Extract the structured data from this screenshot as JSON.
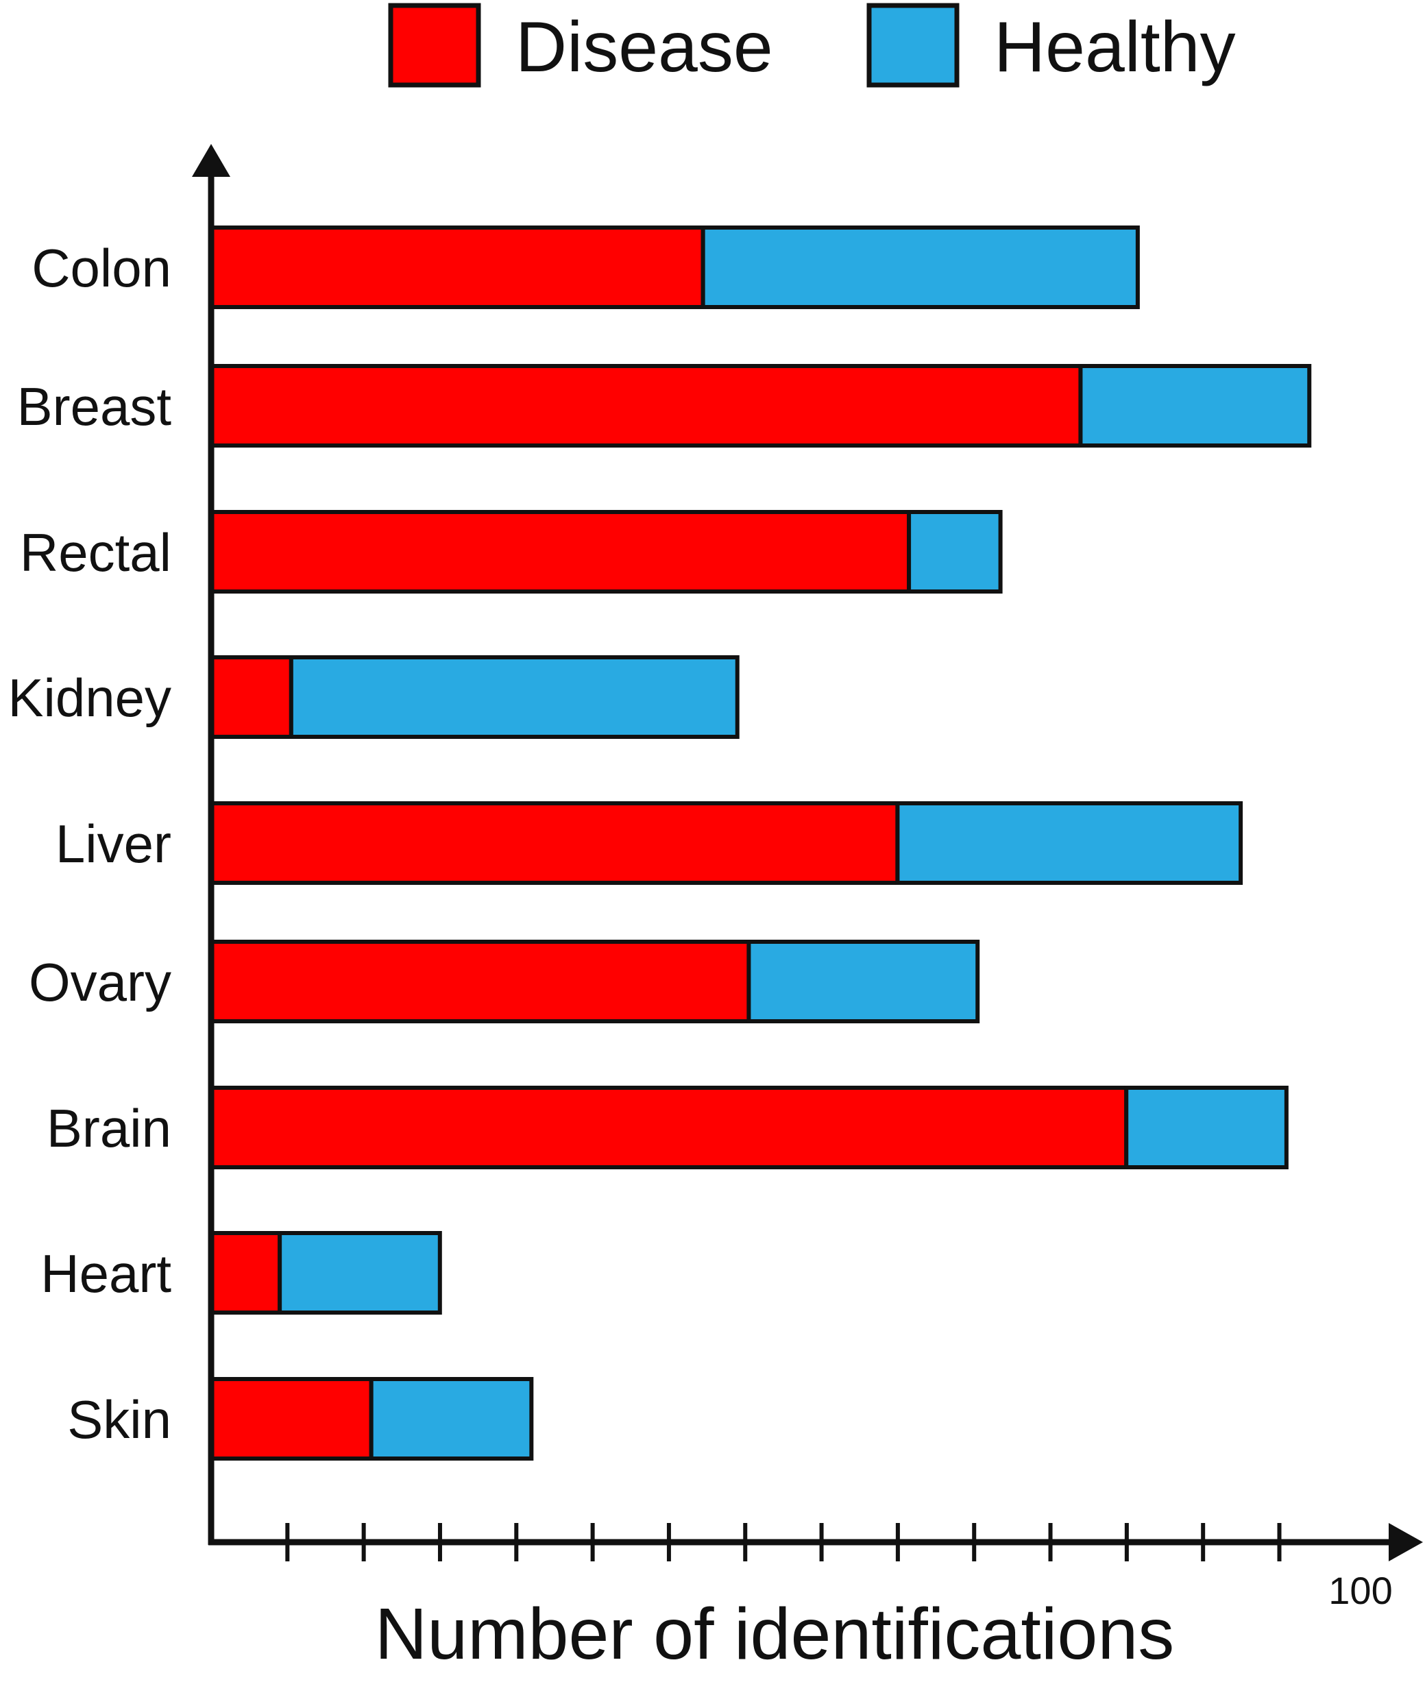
{
  "chart_data": {
    "type": "bar",
    "orientation": "horizontal",
    "stacked": true,
    "title": "",
    "xlabel": "Number of identifications",
    "ylabel": "",
    "xlim": [
      0,
      100
    ],
    "x_tick_step": 6.67,
    "x_tick_labels": [
      {
        "value": 100,
        "label": "100"
      }
    ],
    "grid": false,
    "legend_position": "top",
    "categories": [
      "Colon",
      "Breast",
      "Rectal",
      "Kidney",
      "Liver",
      "Ovary",
      "Brain",
      "Heart",
      "Skin"
    ],
    "series": [
      {
        "name": "Disease",
        "color": "#ff0000",
        "values": [
          43,
          76,
          61,
          7,
          60,
          47,
          80,
          6,
          14
        ]
      },
      {
        "name": "Healthy",
        "color": "#29aae2",
        "values": [
          38,
          20,
          8,
          39,
          30,
          20,
          14,
          14,
          14
        ]
      }
    ]
  }
}
